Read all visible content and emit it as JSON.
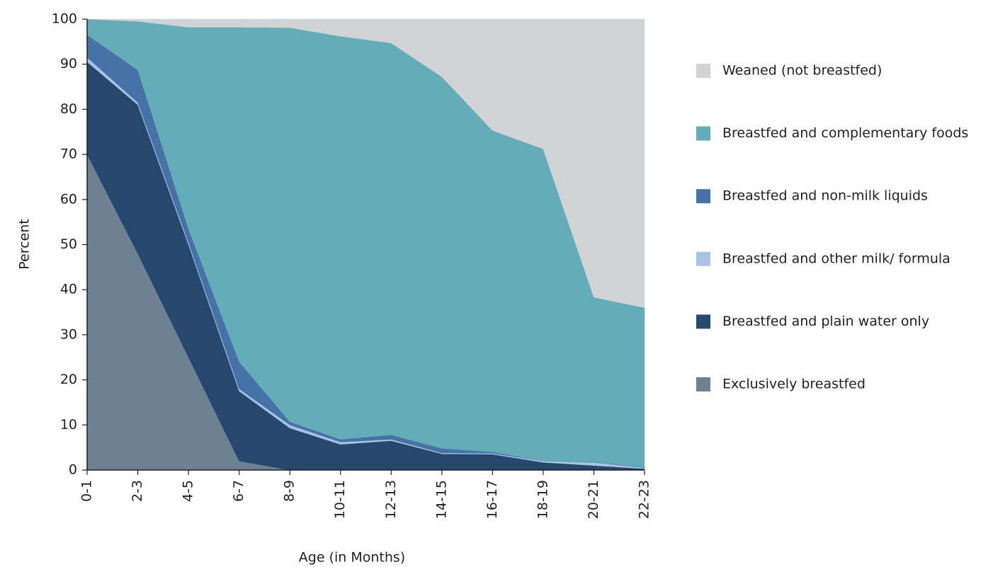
{
  "chart_data": {
    "type": "stacked_area",
    "xlabel": "Age (in Months)",
    "ylabel": "Percent",
    "categories": [
      "0-1",
      "2-3",
      "4-5",
      "6-7",
      "8-9",
      "10-11",
      "12-13",
      "14-15",
      "16-17",
      "18-19",
      "20-21",
      "22-23"
    ],
    "series": [
      {
        "name": "Exclusively breastfed",
        "color": "#6d8193",
        "values": [
          70,
          48,
          25,
          2,
          0,
          0,
          0,
          0,
          0,
          0,
          0,
          0
        ]
      },
      {
        "name": "Breastfed and plain water only",
        "color": "#26486f",
        "values": [
          20.5,
          33,
          25,
          15.5,
          9.3,
          5.7,
          6.5,
          3.6,
          3.5,
          1.7,
          1,
          0.3
        ]
      },
      {
        "name": "Breastfed and other milk/ formula",
        "color": "#a7c5e2",
        "values": [
          1,
          0.5,
          0.5,
          0.5,
          0.7,
          0.5,
          0.3,
          0.2,
          0.2,
          0.3,
          0.7,
          0.2
        ]
      },
      {
        "name": "Breastfed and non-milk liquids",
        "color": "#4672a8",
        "values": [
          5,
          7.2,
          3,
          6,
          0.7,
          0.6,
          1,
          1,
          0.3,
          0,
          0.1,
          0.1
        ]
      },
      {
        "name": "Breastfed and complementary foods",
        "color": "#64acb8",
        "values": [
          3.5,
          10.8,
          44.7,
          74.2,
          87.4,
          89.4,
          86.9,
          82.4,
          71.3,
          69.2,
          36.5,
          35.4
        ]
      },
      {
        "name": "Weaned (not breastfed)",
        "color": "#d1d3d4",
        "values": [
          0,
          0.5,
          1.8,
          1.8,
          1.9,
          3.8,
          5.3,
          12.8,
          24.7,
          28.8,
          61.7,
          64
        ]
      }
    ],
    "ylim": [
      0,
      100
    ],
    "yticks": [
      0,
      10,
      20,
      30,
      40,
      50,
      60,
      70,
      80,
      90,
      100
    ],
    "legend": "right"
  }
}
